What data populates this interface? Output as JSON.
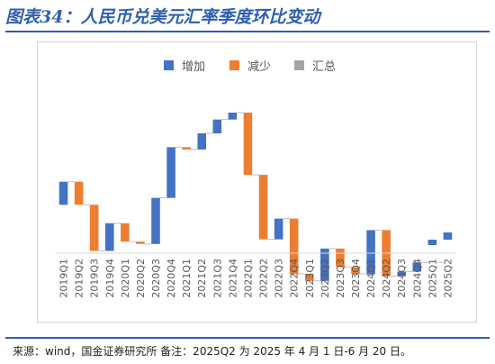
{
  "header": {
    "title": "图表34：人民币兑美元汇率季度环比变动"
  },
  "footer": {
    "source": "来源：wind，国金证券研究所 备注：2025Q2 为 2025 年 4 月 1 日-6 月 20 日。"
  },
  "colors": {
    "increase": "#4472c4",
    "decrease": "#ed7d31",
    "total": "#a5a5a5",
    "connector": "#bfbfbf",
    "axis": "#d9d9d9"
  },
  "chart_data": {
    "type": "bar",
    "subtype": "waterfall",
    "legend": {
      "position": "top",
      "entries": [
        "增加",
        "减少",
        "汇总"
      ]
    },
    "grid": false,
    "y_axis_visible": false,
    "categories": [
      "2019Q1",
      "2019Q2",
      "2019Q3",
      "2019Q4",
      "2020Q1",
      "2020Q2",
      "2020Q3",
      "2020Q4",
      "2021Q1",
      "2021Q2",
      "2021Q3",
      "2021Q4",
      "2022Q1",
      "2022Q2",
      "2022Q3",
      "2022Q4",
      "2023Q1",
      "2023Q2",
      "2023Q3",
      "2023Q4",
      "2024Q1",
      "2024Q2",
      "2024Q3",
      "2024Q4",
      "2025Q1",
      "2025Q2"
    ],
    "values": [
      1.0,
      -1.0,
      -2.0,
      1.2,
      -0.8,
      -0.1,
      2.0,
      2.2,
      -0.1,
      0.7,
      0.6,
      0.3,
      -2.7,
      -2.8,
      0.9,
      -2.4,
      -0.3,
      1.4,
      -0.8,
      -0.3,
      1.9,
      -2.0,
      0.2,
      0.4,
      0,
      0
    ],
    "start": 2.1
  }
}
